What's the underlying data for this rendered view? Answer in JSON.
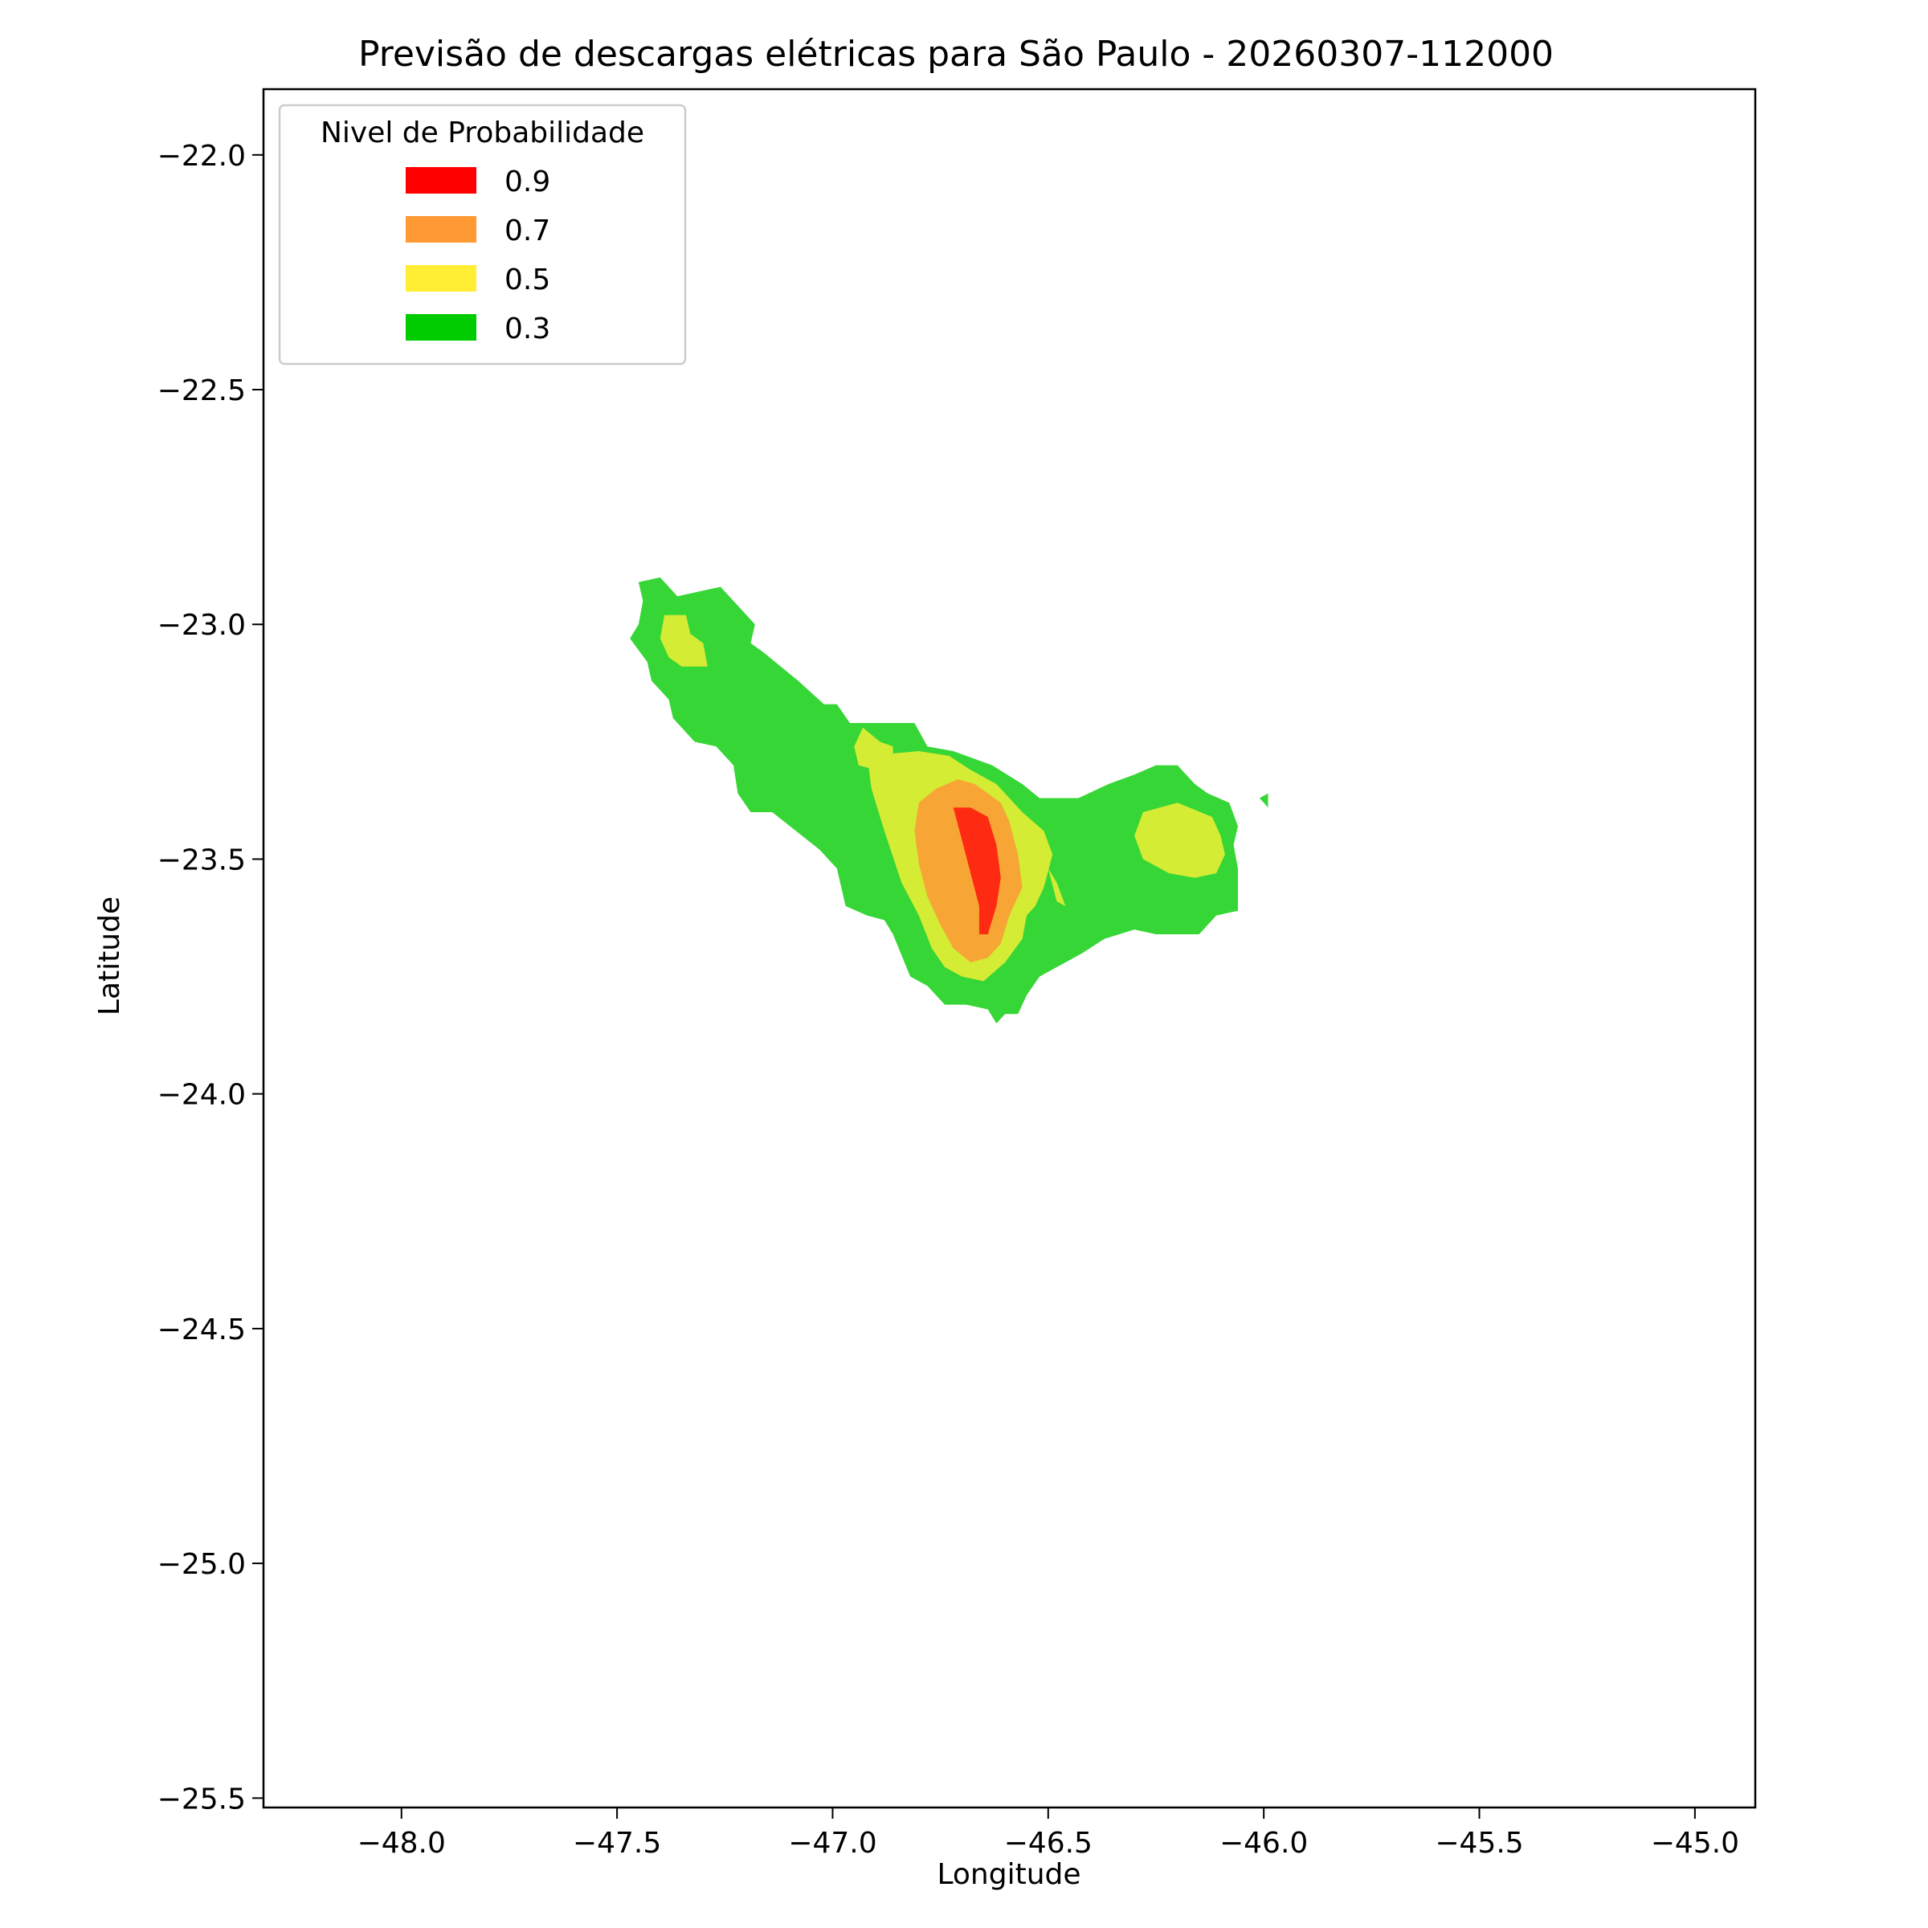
{
  "chart_data": {
    "type": "contour",
    "title": "Previsão de descargas elétricas para São Paulo - 20260307-112000",
    "xlabel": "Longitude",
    "ylabel": "Latitude",
    "xlim": [
      -48.32,
      -44.86
    ],
    "ylim": [
      -25.52,
      -21.86
    ],
    "xticks": [
      -48.0,
      -47.5,
      -47.0,
      -46.5,
      -46.0,
      -45.5,
      -45.0
    ],
    "xtick_labels": [
      "−48.0",
      "−47.5",
      "−47.0",
      "−46.5",
      "−46.0",
      "−45.5",
      "−45.0"
    ],
    "yticks": [
      -22.0,
      -22.5,
      -23.0,
      -23.5,
      -24.0,
      -24.5,
      -25.0,
      -25.5
    ],
    "ytick_labels": [
      "−22.0",
      "−22.5",
      "−23.0",
      "−23.5",
      "−24.0",
      "−24.5",
      "−25.0",
      "−25.5"
    ],
    "grid": false,
    "legend": {
      "title": "Nivel de Probabilidade",
      "placement": "upper-left",
      "entries": [
        {
          "label": "0.9",
          "color": "#ff0000"
        },
        {
          "label": "0.7",
          "color": "#ff9933"
        },
        {
          "label": "0.5",
          "color": "#ffee33"
        },
        {
          "label": "0.3",
          "color": "#00cc00"
        }
      ]
    },
    "levels": [
      {
        "level": "0.3",
        "color": "#36d636",
        "polygons": [
          [
            [
              -47.45,
              -22.91
            ],
            [
              -47.4,
              -22.9
            ],
            [
              -47.36,
              -22.94
            ],
            [
              -47.26,
              -22.92
            ],
            [
              -47.22,
              -22.96
            ],
            [
              -47.18,
              -23.0
            ],
            [
              -47.19,
              -23.04
            ],
            [
              -47.16,
              -23.06
            ],
            [
              -47.08,
              -23.12
            ],
            [
              -47.02,
              -23.17
            ],
            [
              -46.99,
              -23.17
            ],
            [
              -46.96,
              -23.21
            ],
            [
              -46.81,
              -23.21
            ],
            [
              -46.78,
              -23.26
            ],
            [
              -46.72,
              -23.27
            ],
            [
              -46.63,
              -23.3
            ],
            [
              -46.56,
              -23.34
            ],
            [
              -46.52,
              -23.37
            ],
            [
              -46.43,
              -23.37
            ],
            [
              -46.36,
              -23.34
            ],
            [
              -46.3,
              -23.32
            ],
            [
              -46.25,
              -23.3
            ],
            [
              -46.2,
              -23.3
            ],
            [
              -46.16,
              -23.34
            ],
            [
              -46.13,
              -23.36
            ],
            [
              -46.08,
              -23.38
            ],
            [
              -46.06,
              -23.43
            ],
            [
              -46.07,
              -23.47
            ],
            [
              -46.06,
              -23.52
            ],
            [
              -46.06,
              -23.56
            ],
            [
              -46.06,
              -23.61
            ],
            [
              -46.11,
              -23.62
            ],
            [
              -46.15,
              -23.66
            ],
            [
              -46.25,
              -23.66
            ],
            [
              -46.3,
              -23.65
            ],
            [
              -46.37,
              -23.67
            ],
            [
              -46.42,
              -23.7
            ],
            [
              -46.48,
              -23.73
            ],
            [
              -46.52,
              -23.75
            ],
            [
              -46.55,
              -23.79
            ],
            [
              -46.57,
              -23.83
            ],
            [
              -46.6,
              -23.83
            ],
            [
              -46.62,
              -23.85
            ],
            [
              -46.64,
              -23.82
            ],
            [
              -46.69,
              -23.81
            ],
            [
              -46.74,
              -23.81
            ],
            [
              -46.78,
              -23.77
            ],
            [
              -46.82,
              -23.75
            ],
            [
              -46.86,
              -23.66
            ],
            [
              -46.88,
              -23.63
            ],
            [
              -46.92,
              -23.62
            ],
            [
              -46.97,
              -23.6
            ],
            [
              -46.99,
              -23.52
            ],
            [
              -47.03,
              -23.48
            ],
            [
              -47.14,
              -23.4
            ],
            [
              -47.19,
              -23.4
            ],
            [
              -47.22,
              -23.36
            ],
            [
              -47.23,
              -23.3
            ],
            [
              -47.27,
              -23.26
            ],
            [
              -47.32,
              -23.25
            ],
            [
              -47.37,
              -23.2
            ],
            [
              -47.38,
              -23.16
            ],
            [
              -47.42,
              -23.12
            ],
            [
              -47.43,
              -23.08
            ],
            [
              -47.47,
              -23.03
            ],
            [
              -47.45,
              -23.0
            ],
            [
              -47.44,
              -22.95
            ]
          ],
          [
            [
              -46.01,
              -23.37
            ],
            [
              -45.99,
              -23.36
            ],
            [
              -45.99,
              -23.39
            ],
            [
              -46.0,
              -23.38
            ]
          ]
        ]
      },
      {
        "level": "0.5",
        "color": "#d4ec34",
        "polygons": [
          [
            [
              -47.39,
              -22.98
            ],
            [
              -47.34,
              -22.98
            ],
            [
              -47.33,
              -23.02
            ],
            [
              -47.3,
              -23.04
            ],
            [
              -47.29,
              -23.09
            ],
            [
              -47.35,
              -23.09
            ],
            [
              -47.38,
              -23.07
            ],
            [
              -47.4,
              -23.03
            ]
          ],
          [
            [
              -46.93,
              -23.22
            ],
            [
              -46.89,
              -23.25
            ],
            [
              -46.86,
              -23.26
            ],
            [
              -46.86,
              -23.3
            ],
            [
              -46.9,
              -23.31
            ],
            [
              -46.94,
              -23.3
            ],
            [
              -46.95,
              -23.26
            ]
          ],
          [
            [
              -46.92,
              -23.28
            ],
            [
              -46.8,
              -23.27
            ],
            [
              -46.73,
              -23.28
            ],
            [
              -46.68,
              -23.31
            ],
            [
              -46.62,
              -23.34
            ],
            [
              -46.56,
              -23.4
            ],
            [
              -46.51,
              -23.44
            ],
            [
              -46.49,
              -23.49
            ],
            [
              -46.51,
              -23.56
            ],
            [
              -46.53,
              -23.6
            ],
            [
              -46.55,
              -23.62
            ],
            [
              -46.56,
              -23.67
            ],
            [
              -46.6,
              -23.72
            ],
            [
              -46.65,
              -23.76
            ],
            [
              -46.7,
              -23.75
            ],
            [
              -46.74,
              -23.73
            ],
            [
              -46.77,
              -23.69
            ],
            [
              -46.8,
              -23.62
            ],
            [
              -46.84,
              -23.55
            ],
            [
              -46.88,
              -23.44
            ],
            [
              -46.91,
              -23.35
            ]
          ],
          [
            [
              -46.5,
              -23.52
            ],
            [
              -46.48,
              -23.59
            ],
            [
              -46.46,
              -23.6
            ],
            [
              -46.48,
              -23.55
            ]
          ],
          [
            [
              -46.28,
              -23.4
            ],
            [
              -46.2,
              -23.38
            ],
            [
              -46.12,
              -23.41
            ],
            [
              -46.1,
              -23.45
            ],
            [
              -46.09,
              -23.49
            ],
            [
              -46.11,
              -23.53
            ],
            [
              -46.16,
              -23.54
            ],
            [
              -46.22,
              -23.53
            ],
            [
              -46.28,
              -23.5
            ],
            [
              -46.3,
              -23.45
            ]
          ]
        ]
      },
      {
        "level": "0.7",
        "color": "#f7a635",
        "polygons": [
          [
            [
              -46.71,
              -23.33
            ],
            [
              -46.67,
              -23.34
            ],
            [
              -46.61,
              -23.38
            ],
            [
              -46.59,
              -23.42
            ],
            [
              -46.57,
              -23.49
            ],
            [
              -46.56,
              -23.56
            ],
            [
              -46.59,
              -23.62
            ],
            [
              -46.61,
              -23.68
            ],
            [
              -46.64,
              -23.71
            ],
            [
              -46.68,
              -23.72
            ],
            [
              -46.72,
              -23.69
            ],
            [
              -46.75,
              -23.64
            ],
            [
              -46.78,
              -23.58
            ],
            [
              -46.8,
              -23.51
            ],
            [
              -46.81,
              -23.44
            ],
            [
              -46.8,
              -23.38
            ],
            [
              -46.76,
              -23.35
            ]
          ]
        ]
      },
      {
        "level": "0.9",
        "color": "#ff2a12",
        "polygons": [
          [
            [
              -46.72,
              -23.39
            ],
            [
              -46.68,
              -23.39
            ],
            [
              -46.64,
              -23.41
            ],
            [
              -46.62,
              -23.47
            ],
            [
              -46.61,
              -23.54
            ],
            [
              -46.62,
              -23.6
            ],
            [
              -46.64,
              -23.66
            ],
            [
              -46.66,
              -23.66
            ],
            [
              -46.66,
              -23.6
            ],
            [
              -46.68,
              -23.53
            ],
            [
              -46.7,
              -23.46
            ]
          ]
        ]
      }
    ]
  }
}
